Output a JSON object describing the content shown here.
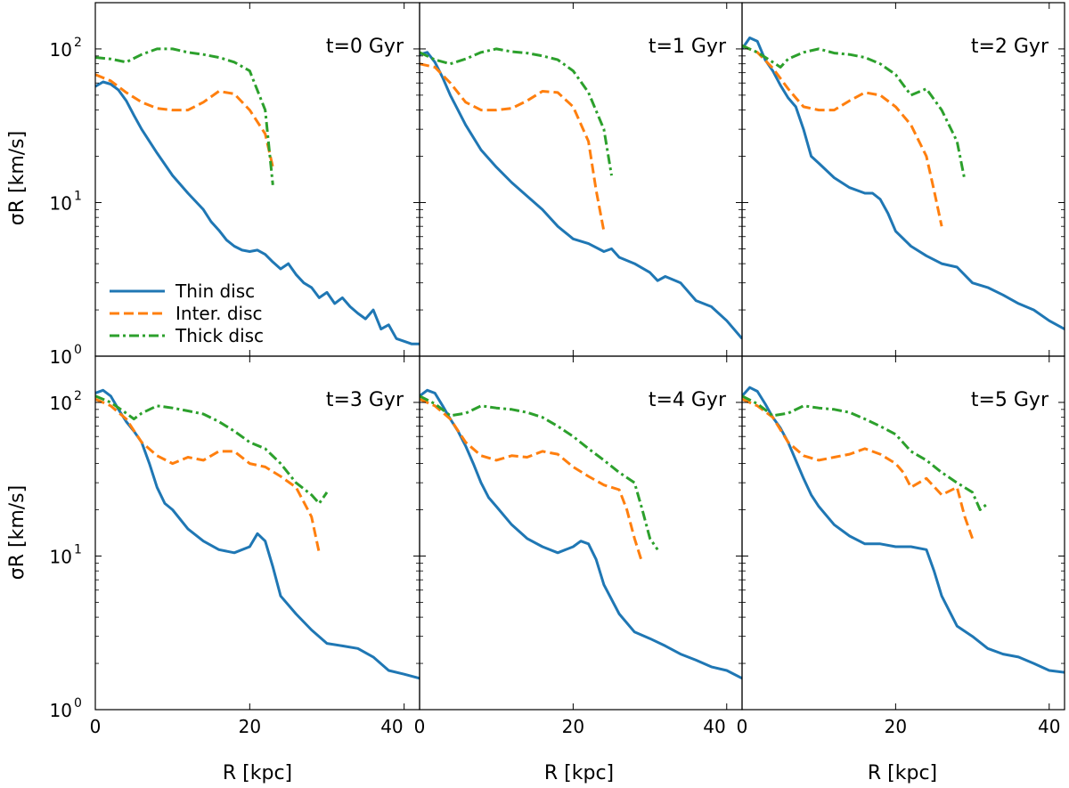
{
  "figure": {
    "ylabel": "σR [km/s]",
    "xlabel": "R [kpc]",
    "x_ticks": [
      "0",
      "20",
      "40"
    ],
    "y_ticks": [
      "10",
      "10",
      "10"
    ],
    "y_tick_exponents": [
      "0",
      "1",
      "2"
    ]
  },
  "colors": {
    "thin": "#1f77b4",
    "inter": "#ff7f0e",
    "thick": "#2ca02c"
  },
  "legend": {
    "thin": "Thin disc",
    "inter": "Inter. disc",
    "thick": "Thick disc"
  },
  "chart_data": [
    {
      "type": "line",
      "title": "t=0 Gyr",
      "xlabel": "R [kpc]",
      "ylabel": "σR [km/s]",
      "xlim": [
        0,
        42
      ],
      "ylim": [
        1,
        200
      ],
      "yscale": "log",
      "series": [
        {
          "name": "Thin disc",
          "x": [
            0,
            1,
            2,
            3,
            4,
            5,
            6,
            8,
            10,
            12,
            14,
            15,
            16,
            17,
            18,
            19,
            20,
            21,
            22,
            23,
            24,
            25,
            26,
            27,
            28,
            29,
            30,
            31,
            32,
            33,
            34,
            35,
            36,
            37,
            38,
            39,
            40,
            41,
            42
          ],
          "y": [
            57,
            61,
            59,
            54,
            46,
            37,
            30,
            21,
            15,
            11.5,
            9,
            7.5,
            6.6,
            5.7,
            5.2,
            4.9,
            4.8,
            4.9,
            4.6,
            4.1,
            3.7,
            4.0,
            3.4,
            3.0,
            2.8,
            2.4,
            2.6,
            2.2,
            2.4,
            2.1,
            1.9,
            1.75,
            2.0,
            1.5,
            1.6,
            1.3,
            1.25,
            1.2,
            1.2
          ]
        },
        {
          "name": "Inter. disc",
          "x": [
            0,
            2,
            4,
            6,
            8,
            10,
            12,
            14,
            16,
            18,
            20,
            22,
            23
          ],
          "y": [
            68,
            62,
            52,
            45,
            41,
            40,
            40,
            45,
            53,
            51,
            40,
            28,
            17
          ]
        },
        {
          "name": "Thick disc",
          "x": [
            0,
            2,
            4,
            6,
            8,
            10,
            12,
            14,
            16,
            18,
            20,
            22,
            23
          ],
          "y": [
            88,
            86,
            82,
            92,
            100,
            100,
            95,
            92,
            88,
            82,
            72,
            40,
            13
          ]
        }
      ]
    },
    {
      "type": "line",
      "title": "t=1 Gyr",
      "xlabel": "R [kpc]",
      "ylabel": "σR [km/s]",
      "xlim": [
        0,
        42
      ],
      "ylim": [
        1,
        200
      ],
      "yscale": "log",
      "series": [
        {
          "name": "Thin disc",
          "x": [
            0,
            1,
            2,
            3,
            4,
            5,
            6,
            8,
            10,
            12,
            14,
            16,
            18,
            20,
            22,
            24,
            25,
            26,
            28,
            30,
            31,
            32,
            34,
            36,
            38,
            40,
            42
          ],
          "y": [
            92,
            95,
            82,
            65,
            50,
            40,
            32,
            22,
            17,
            13.5,
            11,
            9,
            7,
            5.8,
            5.4,
            4.8,
            5.0,
            4.4,
            4.0,
            3.5,
            3.1,
            3.3,
            3.0,
            2.3,
            2.1,
            1.7,
            1.3
          ]
        },
        {
          "name": "Inter. disc",
          "x": [
            0,
            2,
            4,
            6,
            8,
            10,
            12,
            14,
            16,
            18,
            20,
            22,
            23,
            24
          ],
          "y": [
            80,
            76,
            60,
            45,
            40,
            40,
            41,
            46,
            53,
            52,
            42,
            25,
            12,
            6.5
          ]
        },
        {
          "name": "Thick disc",
          "x": [
            0,
            2,
            4,
            6,
            8,
            10,
            12,
            14,
            16,
            18,
            20,
            22,
            24,
            25
          ],
          "y": [
            95,
            85,
            80,
            86,
            95,
            100,
            96,
            94,
            90,
            85,
            72,
            52,
            30,
            15
          ]
        }
      ]
    },
    {
      "type": "line",
      "title": "t=2 Gyr",
      "xlabel": "R [kpc]",
      "ylabel": "σR [km/s]",
      "xlim": [
        0,
        42
      ],
      "ylim": [
        1,
        200
      ],
      "yscale": "log",
      "series": [
        {
          "name": "Thin disc",
          "x": [
            0,
            1,
            2,
            3,
            4,
            5,
            6,
            7,
            8,
            9,
            10,
            12,
            14,
            16,
            17,
            18,
            19,
            20,
            22,
            24,
            26,
            28,
            30,
            32,
            34,
            36,
            38,
            40,
            42
          ],
          "y": [
            100,
            118,
            112,
            85,
            72,
            58,
            48,
            42,
            30,
            20,
            18,
            14.5,
            12.5,
            11.5,
            11.5,
            10.5,
            8.5,
            6.5,
            5.2,
            4.5,
            4.0,
            3.8,
            3.0,
            2.8,
            2.5,
            2.2,
            2.0,
            1.7,
            1.5
          ]
        },
        {
          "name": "Inter. disc",
          "x": [
            0,
            2,
            4,
            6,
            7,
            8,
            10,
            12,
            14,
            16,
            18,
            20,
            22,
            24,
            25,
            26
          ],
          "y": [
            105,
            95,
            75,
            55,
            48,
            42,
            40,
            40,
            46,
            52,
            50,
            42,
            32,
            20,
            12,
            7
          ]
        },
        {
          "name": "Thick disc",
          "x": [
            0,
            2,
            4,
            5,
            6,
            8,
            10,
            12,
            14,
            16,
            18,
            20,
            22,
            24,
            26,
            28,
            29
          ],
          "y": [
            105,
            95,
            82,
            76,
            86,
            95,
            100,
            94,
            92,
            88,
            80,
            68,
            50,
            55,
            40,
            25,
            14
          ]
        }
      ]
    },
    {
      "type": "line",
      "title": "t=3 Gyr",
      "xlabel": "R [kpc]",
      "ylabel": "σR [km/s]",
      "xlim": [
        0,
        42
      ],
      "ylim": [
        1,
        200
      ],
      "yscale": "log",
      "series": [
        {
          "name": "Thin disc",
          "x": [
            0,
            1,
            2,
            3,
            4,
            5,
            6,
            7,
            8,
            9,
            10,
            12,
            14,
            16,
            18,
            20,
            21,
            22,
            23,
            24,
            26,
            28,
            30,
            32,
            34,
            36,
            38,
            40,
            42
          ],
          "y": [
            115,
            120,
            110,
            90,
            75,
            65,
            55,
            40,
            28,
            22,
            20,
            15,
            12.5,
            11,
            10.5,
            11.5,
            14,
            12.5,
            8.5,
            5.5,
            4.2,
            3.3,
            2.7,
            2.6,
            2.5,
            2.2,
            1.8,
            1.7,
            1.6
          ]
        },
        {
          "name": "Inter. disc",
          "x": [
            0,
            2,
            4,
            6,
            8,
            10,
            12,
            14,
            16,
            18,
            20,
            22,
            24,
            26,
            28,
            29
          ],
          "y": [
            105,
            95,
            78,
            55,
            45,
            40,
            44,
            42,
            48,
            48,
            40,
            38,
            33,
            28,
            18,
            10.5
          ]
        },
        {
          "name": "Thick disc",
          "x": [
            0,
            2,
            4,
            5,
            6,
            8,
            10,
            12,
            14,
            16,
            18,
            20,
            22,
            24,
            26,
            28,
            29,
            30
          ],
          "y": [
            110,
            100,
            85,
            78,
            85,
            95,
            92,
            88,
            84,
            75,
            65,
            55,
            50,
            40,
            30,
            25,
            22,
            26
          ]
        }
      ]
    },
    {
      "type": "line",
      "title": "t=4 Gyr",
      "xlabel": "R [kpc]",
      "ylabel": "σR [km/s]",
      "xlim": [
        0,
        42
      ],
      "ylim": [
        1,
        200
      ],
      "yscale": "log",
      "series": [
        {
          "name": "Thin disc",
          "x": [
            0,
            1,
            2,
            3,
            4,
            5,
            6,
            7,
            8,
            9,
            10,
            12,
            14,
            16,
            18,
            20,
            21,
            22,
            23,
            24,
            26,
            28,
            30,
            32,
            34,
            36,
            38,
            40,
            42
          ],
          "y": [
            110,
            120,
            115,
            95,
            78,
            65,
            52,
            40,
            30,
            24,
            21,
            16,
            13,
            11.5,
            10.5,
            11.5,
            12.5,
            12,
            9.5,
            6.5,
            4.2,
            3.2,
            2.9,
            2.6,
            2.3,
            2.1,
            1.9,
            1.8,
            1.6
          ]
        },
        {
          "name": "Inter. disc",
          "x": [
            0,
            2,
            4,
            6,
            8,
            10,
            12,
            14,
            16,
            18,
            20,
            22,
            24,
            26,
            27,
            28,
            29
          ],
          "y": [
            105,
            95,
            78,
            55,
            45,
            42,
            45,
            44,
            48,
            46,
            38,
            33,
            29,
            27,
            20,
            13,
            9
          ]
        },
        {
          "name": "Thick disc",
          "x": [
            0,
            2,
            4,
            6,
            8,
            10,
            12,
            14,
            16,
            18,
            20,
            22,
            24,
            26,
            28,
            29,
            30,
            31
          ],
          "y": [
            110,
            98,
            82,
            85,
            95,
            92,
            90,
            86,
            80,
            70,
            60,
            50,
            42,
            35,
            30,
            20,
            13,
            11
          ]
        }
      ]
    },
    {
      "type": "line",
      "title": "t=5 Gyr",
      "xlabel": "R [kpc]",
      "ylabel": "σR [km/s]",
      "xlim": [
        0,
        42
      ],
      "ylim": [
        1,
        200
      ],
      "yscale": "log",
      "series": [
        {
          "name": "Thin disc",
          "x": [
            0,
            1,
            2,
            3,
            4,
            5,
            6,
            7,
            8,
            9,
            10,
            12,
            14,
            16,
            18,
            20,
            22,
            24,
            25,
            26,
            28,
            30,
            32,
            34,
            36,
            38,
            40,
            42
          ],
          "y": [
            110,
            125,
            118,
            98,
            80,
            68,
            55,
            42,
            32,
            25,
            21,
            16,
            13.5,
            12,
            12,
            11.5,
            11.5,
            11,
            8,
            5.5,
            3.5,
            3.0,
            2.5,
            2.3,
            2.2,
            2.0,
            1.8,
            1.75
          ]
        },
        {
          "name": "Inter. disc",
          "x": [
            0,
            2,
            4,
            6,
            8,
            10,
            12,
            14,
            16,
            18,
            20,
            21,
            22,
            24,
            26,
            28,
            29,
            30
          ],
          "y": [
            105,
            95,
            80,
            55,
            45,
            42,
            44,
            46,
            50,
            46,
            40,
            35,
            28,
            32,
            25,
            28,
            18,
            13
          ]
        },
        {
          "name": "Thick disc",
          "x": [
            0,
            2,
            4,
            6,
            8,
            10,
            12,
            14,
            16,
            18,
            20,
            22,
            24,
            26,
            28,
            30,
            31,
            32
          ],
          "y": [
            110,
            98,
            82,
            85,
            95,
            92,
            90,
            86,
            78,
            70,
            62,
            48,
            42,
            35,
            30,
            26,
            20,
            22
          ]
        }
      ]
    }
  ]
}
